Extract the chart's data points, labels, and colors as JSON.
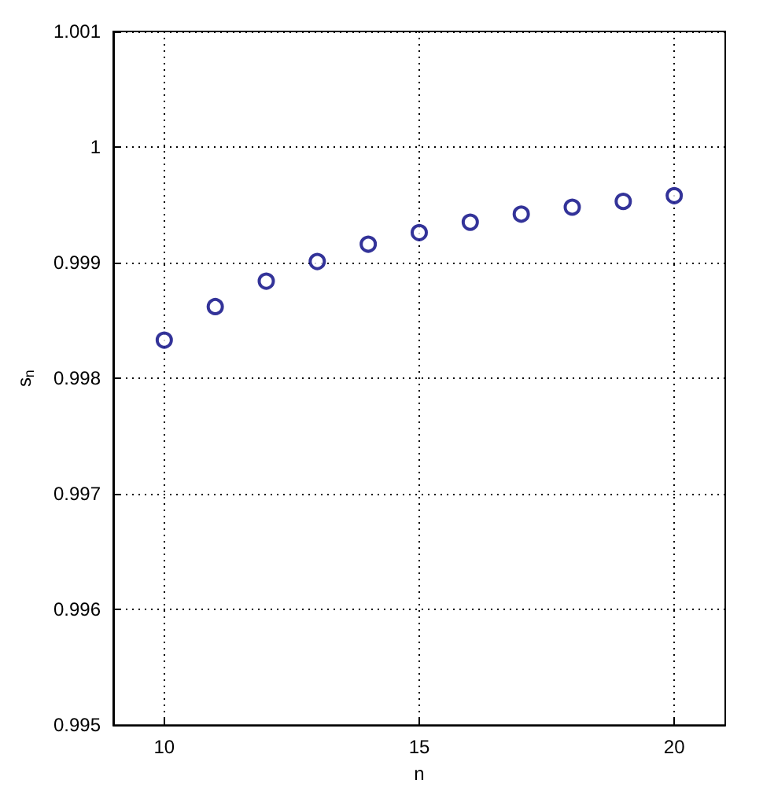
{
  "chart_data": {
    "type": "scatter",
    "xlabel": "n",
    "ylabel": "s$_{n}$",
    "x": [
      10,
      11,
      12,
      13,
      14,
      15,
      16,
      17,
      18,
      19,
      20
    ],
    "series": [
      {
        "color": "#000080",
        "values": [
          0.99833,
          0.99862,
          0.99884,
          0.99901,
          0.99916,
          0.99926,
          0.99935,
          0.99942,
          0.99948,
          0.99953,
          0.99958
        ]
      }
    ],
    "xlim": [
      9,
      21
    ],
    "xticks": [
      10,
      15,
      20
    ],
    "ylim": [
      0.995,
      1.001
    ],
    "yticks": [
      0.995,
      0.996,
      0.997,
      0.998,
      0.999,
      1,
      1.001
    ],
    "grid": true,
    "marker": "circle"
  }
}
